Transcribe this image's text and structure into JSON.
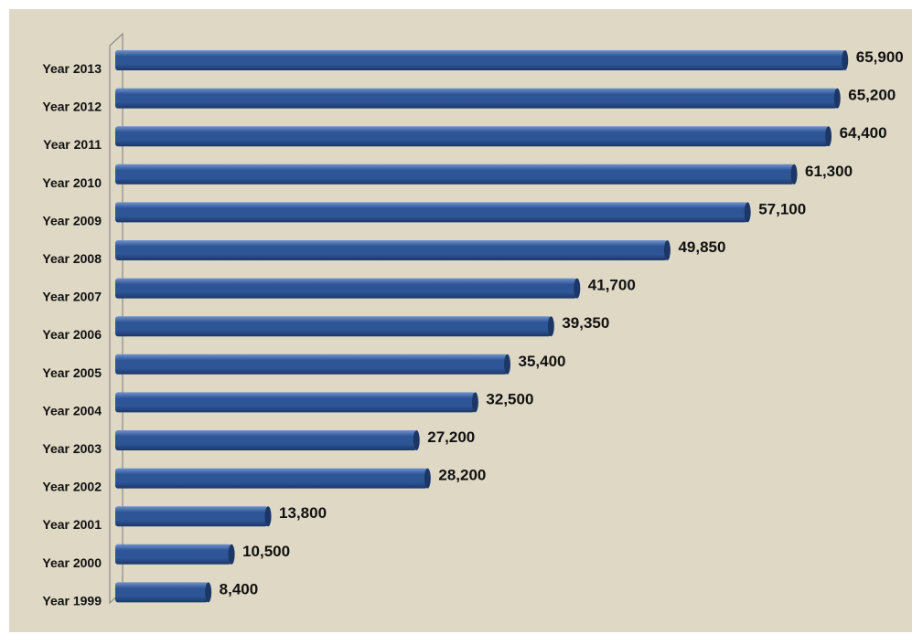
{
  "chart_data": {
    "type": "bar",
    "orientation": "horizontal",
    "title": "",
    "xlabel": "",
    "ylabel": "",
    "grid": false,
    "legend": "none",
    "categories": [
      "Year 2013",
      "Year 2012",
      "Year 2011",
      "Year 2010",
      "Year 2009",
      "Year 2008",
      "Year 2007",
      "Year 2006",
      "Year 2005",
      "Year 2004",
      "Year 2003",
      "Year 2002",
      "Year 2001",
      "Year 2000",
      "Year 1999"
    ],
    "values": [
      65900,
      65200,
      64400,
      61300,
      57100,
      49850,
      41700,
      39350,
      35400,
      32500,
      27200,
      28200,
      13800,
      10500,
      8400
    ],
    "value_labels": [
      "65,900",
      "65,200",
      "64,400",
      "61,300",
      "57,100",
      "49,850",
      "41,700",
      "39,350",
      "35,400",
      "32,500",
      "27,200",
      "28,200",
      "13,800",
      "10,500",
      "8,400"
    ],
    "xlim": [
      0,
      66500
    ]
  },
  "colors": {
    "background": "#ded8c5",
    "bar": "#2e5596",
    "bar_highlight": "#6e92cc",
    "bar_dark": "#1c3766",
    "text": "#111111"
  }
}
